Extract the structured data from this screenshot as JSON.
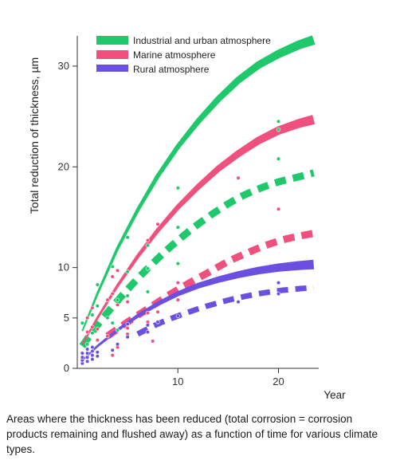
{
  "chart_data": {
    "type": "line",
    "ylabel": "Total reduction of thickness, µm",
    "xlabel": "Year",
    "xlim": [
      0,
      24
    ],
    "ylim": [
      0,
      33
    ],
    "x_ticks": [
      "10",
      "20"
    ],
    "y_ticks": [
      "0",
      "5",
      "10",
      "20",
      "30"
    ],
    "legend_position": "top-left",
    "series": [
      {
        "name": "Industrial and urban atmosphere",
        "color": "#1fc96b",
        "curve_solid": [
          [
            0.5,
            3.7
          ],
          [
            2,
            7.4
          ],
          [
            4,
            11.9
          ],
          [
            6,
            15.7
          ],
          [
            8,
            19.1
          ],
          [
            10,
            22.0
          ],
          [
            12,
            24.5
          ],
          [
            14,
            26.7
          ],
          [
            16,
            28.6
          ],
          [
            18,
            30.1
          ],
          [
            20,
            31.2
          ],
          [
            22,
            32.1
          ],
          [
            23.5,
            32.6
          ]
        ],
        "curve_dashed": [
          [
            0.5,
            2.2
          ],
          [
            2,
            4.3
          ],
          [
            4,
            6.7
          ],
          [
            6,
            8.9
          ],
          [
            8,
            10.9
          ],
          [
            10,
            12.7
          ],
          [
            12,
            14.3
          ],
          [
            14,
            15.7
          ],
          [
            16,
            16.9
          ],
          [
            18,
            17.8
          ],
          [
            20,
            18.5
          ],
          [
            22,
            19.0
          ],
          [
            23.5,
            19.4
          ]
        ],
        "points": [
          [
            0.5,
            4.5
          ],
          [
            1,
            2.4
          ],
          [
            1.5,
            3.5
          ],
          [
            1.5,
            5.3
          ],
          [
            2,
            6.2
          ],
          [
            2,
            8.3
          ],
          [
            3,
            5.0
          ],
          [
            3.5,
            10.1
          ],
          [
            3.5,
            4.5
          ],
          [
            4,
            6.8
          ],
          [
            4,
            3.8
          ],
          [
            5,
            13.0
          ],
          [
            5,
            9.6
          ],
          [
            5,
            7.2
          ],
          [
            7,
            12.2
          ],
          [
            7,
            9.9
          ],
          [
            7,
            7.6
          ],
          [
            10,
            17.9
          ],
          [
            10,
            14.0
          ],
          [
            10,
            10.4
          ],
          [
            20,
            24.5
          ],
          [
            20,
            23.7
          ],
          [
            20,
            20.8
          ]
        ]
      },
      {
        "name": "Marine atmosphere",
        "color": "#f0507e",
        "curve_solid": [
          [
            0.5,
            2.4
          ],
          [
            2,
            5.0
          ],
          [
            4,
            8.2
          ],
          [
            6,
            11.1
          ],
          [
            8,
            13.7
          ],
          [
            10,
            16.0
          ],
          [
            12,
            18.0
          ],
          [
            14,
            19.8
          ],
          [
            16,
            21.3
          ],
          [
            18,
            22.6
          ],
          [
            20,
            23.6
          ],
          [
            22,
            24.3
          ],
          [
            23.5,
            24.7
          ]
        ],
        "curve_dashed": [
          [
            3,
            3.2
          ],
          [
            5,
            4.6
          ],
          [
            7,
            5.9
          ],
          [
            9,
            7.2
          ],
          [
            11,
            8.4
          ],
          [
            13,
            9.5
          ],
          [
            15,
            10.6
          ],
          [
            17,
            11.5
          ],
          [
            19,
            12.3
          ],
          [
            21,
            12.9
          ],
          [
            23.5,
            13.4
          ]
        ],
        "points": [
          [
            1,
            3.6
          ],
          [
            1,
            5.0
          ],
          [
            1.5,
            4.1
          ],
          [
            1.5,
            6.0
          ],
          [
            2,
            2.8
          ],
          [
            2,
            3.9
          ],
          [
            3,
            6.8
          ],
          [
            3,
            3.2
          ],
          [
            3.5,
            9.1
          ],
          [
            3.5,
            7.4
          ],
          [
            3.5,
            1.3
          ],
          [
            4,
            9.7
          ],
          [
            4,
            6.3
          ],
          [
            4,
            2.1
          ],
          [
            5,
            6.6
          ],
          [
            5,
            4.0
          ],
          [
            5,
            3.4
          ],
          [
            7,
            12.7
          ],
          [
            7,
            5.5
          ],
          [
            7,
            4.6
          ],
          [
            7.5,
            2.7
          ],
          [
            8,
            14.3
          ],
          [
            8,
            5.6
          ],
          [
            10,
            8.5
          ],
          [
            10,
            6.8
          ],
          [
            16,
            18.9
          ],
          [
            20,
            15.8
          ]
        ]
      },
      {
        "name": "Rural atmosphere",
        "color": "#6b4fe0",
        "curve_solid": [
          [
            0.5,
            0.8
          ],
          [
            2,
            2.2
          ],
          [
            4,
            3.8
          ],
          [
            6,
            5.2
          ],
          [
            8,
            6.4
          ],
          [
            10,
            7.4
          ],
          [
            12,
            8.2
          ],
          [
            14,
            8.8
          ],
          [
            16,
            9.3
          ],
          [
            18,
            9.7
          ],
          [
            20,
            10.0
          ],
          [
            22,
            10.2
          ],
          [
            23.5,
            10.3
          ]
        ],
        "curve_dashed": [
          [
            6,
            3.4
          ],
          [
            8,
            4.4
          ],
          [
            10,
            5.2
          ],
          [
            12,
            5.9
          ],
          [
            14,
            6.5
          ],
          [
            16,
            7.0
          ],
          [
            18,
            7.4
          ],
          [
            20,
            7.7
          ],
          [
            22,
            7.9
          ],
          [
            23.5,
            8.0
          ]
        ],
        "points": [
          [
            0.5,
            0.5
          ],
          [
            0.5,
            0.8
          ],
          [
            0.5,
            1.1
          ],
          [
            0.5,
            1.5
          ],
          [
            1,
            0.7
          ],
          [
            1,
            1.1
          ],
          [
            1,
            1.5
          ],
          [
            1,
            1.9
          ],
          [
            1.5,
            0.9
          ],
          [
            1.5,
            1.3
          ],
          [
            1.5,
            1.7
          ],
          [
            1.5,
            2.1
          ],
          [
            2,
            1.2
          ],
          [
            2,
            1.6
          ],
          [
            3.5,
            1.8
          ],
          [
            4,
            2.4
          ],
          [
            5,
            4.4
          ],
          [
            5,
            3.1
          ],
          [
            7,
            4.3
          ],
          [
            7,
            3.6
          ],
          [
            8,
            4.6
          ],
          [
            10,
            5.2
          ],
          [
            16,
            6.6
          ],
          [
            20,
            8.5
          ],
          [
            20,
            7.4
          ]
        ]
      }
    ]
  },
  "caption": "Areas where the thickness has been reduced (total corrosion = corrosion products remaining and flushed away) as a function of time for various climate types."
}
